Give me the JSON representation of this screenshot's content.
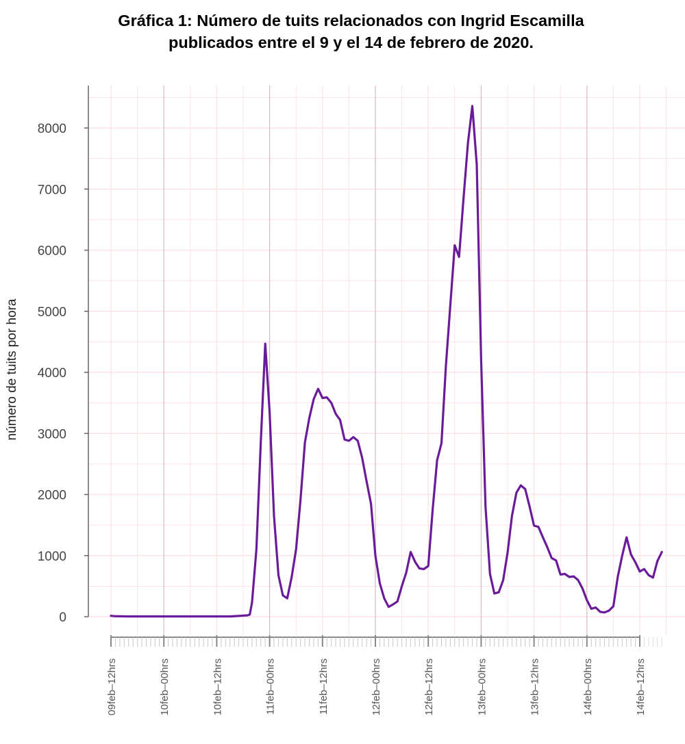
{
  "chart_data": {
    "type": "line",
    "title": "Gráfica 1: Número de tuits relacionados con Ingrid Escamilla",
    "subtitle": "publicados entre el 9 y el 14 de febrero de 2020.",
    "xlabel": "",
    "ylabel": "número de tuits por hora",
    "ylim": [
      0,
      8500
    ],
    "y_ticks": [
      0,
      1000,
      2000,
      3000,
      4000,
      5000,
      6000,
      7000,
      8000
    ],
    "x_ticks": [
      {
        "label": "09feb–12hrs",
        "hour": 0
      },
      {
        "label": "10feb–00hrs",
        "hour": 12
      },
      {
        "label": "10feb–12hrs",
        "hour": 24
      },
      {
        "label": "11feb–00hrs",
        "hour": 36
      },
      {
        "label": "11feb–12hrs",
        "hour": 48
      },
      {
        "label": "12feb–00hrs",
        "hour": 60
      },
      {
        "label": "12feb–12hrs",
        "hour": 72
      },
      {
        "label": "13feb–00hrs",
        "hour": 84
      },
      {
        "label": "13feb–12hrs",
        "hour": 96
      },
      {
        "label": "14feb–00hrs",
        "hour": 108
      },
      {
        "label": "14feb–12hrs",
        "hour": 120
      }
    ],
    "grid": true,
    "series_color": "#6a1b9a",
    "grid_major_color": "#d9b8c2",
    "grid_minor_color": "#fbe3e6",
    "series": [
      {
        "values": [
          [
            0,
            15
          ],
          [
            1,
            8
          ],
          [
            2,
            7
          ],
          [
            4,
            5
          ],
          [
            6,
            5
          ],
          [
            8,
            4
          ],
          [
            12,
            4
          ],
          [
            16,
            4
          ],
          [
            20,
            4
          ],
          [
            24,
            5
          ],
          [
            27,
            4
          ],
          [
            29,
            12
          ],
          [
            31,
            22
          ],
          [
            31.5,
            35
          ],
          [
            32,
            230
          ],
          [
            33,
            1100
          ],
          [
            34,
            2850
          ],
          [
            35,
            4470
          ],
          [
            36,
            3350
          ],
          [
            37,
            1650
          ],
          [
            38,
            680
          ],
          [
            39,
            350
          ],
          [
            40,
            300
          ],
          [
            41,
            650
          ],
          [
            42,
            1100
          ],
          [
            43,
            1900
          ],
          [
            44,
            2850
          ],
          [
            45,
            3250
          ],
          [
            46,
            3560
          ],
          [
            47,
            3730
          ],
          [
            48,
            3580
          ],
          [
            49,
            3590
          ],
          [
            50,
            3500
          ],
          [
            51,
            3320
          ],
          [
            52,
            3220
          ],
          [
            53,
            2900
          ],
          [
            54,
            2880
          ],
          [
            55,
            2940
          ],
          [
            56,
            2880
          ],
          [
            57,
            2600
          ],
          [
            58,
            2220
          ],
          [
            59,
            1850
          ],
          [
            60,
            1000
          ],
          [
            61,
            550
          ],
          [
            62,
            300
          ],
          [
            63,
            160
          ],
          [
            64,
            200
          ],
          [
            65,
            250
          ],
          [
            66,
            500
          ],
          [
            67,
            720
          ],
          [
            68,
            1060
          ],
          [
            69,
            900
          ],
          [
            70,
            790
          ],
          [
            71,
            780
          ],
          [
            72,
            830
          ],
          [
            73,
            1750
          ],
          [
            74,
            2560
          ],
          [
            75,
            2840
          ],
          [
            76,
            4100
          ],
          [
            77,
            5100
          ],
          [
            78,
            6080
          ],
          [
            79,
            5890
          ],
          [
            80,
            6850
          ],
          [
            81,
            7750
          ],
          [
            82,
            8360
          ],
          [
            83,
            7400
          ],
          [
            84,
            4200
          ],
          [
            85,
            1800
          ],
          [
            86,
            700
          ],
          [
            87,
            380
          ],
          [
            88,
            400
          ],
          [
            89,
            600
          ],
          [
            90,
            1050
          ],
          [
            91,
            1650
          ],
          [
            92,
            2030
          ],
          [
            93,
            2150
          ],
          [
            94,
            2090
          ],
          [
            95,
            1800
          ],
          [
            96,
            1490
          ],
          [
            97,
            1470
          ],
          [
            98,
            1300
          ],
          [
            99,
            1140
          ],
          [
            100,
            960
          ],
          [
            101,
            920
          ],
          [
            102,
            690
          ],
          [
            103,
            700
          ],
          [
            104,
            650
          ],
          [
            105,
            660
          ],
          [
            106,
            600
          ],
          [
            107,
            460
          ],
          [
            108,
            270
          ],
          [
            109,
            130
          ],
          [
            110,
            150
          ],
          [
            111,
            80
          ],
          [
            112,
            70
          ],
          [
            113,
            100
          ],
          [
            114,
            170
          ],
          [
            115,
            650
          ],
          [
            116,
            1000
          ],
          [
            117,
            1300
          ],
          [
            118,
            1020
          ],
          [
            119,
            890
          ],
          [
            120,
            740
          ],
          [
            121,
            780
          ],
          [
            122,
            680
          ],
          [
            123,
            640
          ],
          [
            124,
            910
          ],
          [
            125,
            1060
          ]
        ]
      }
    ]
  }
}
